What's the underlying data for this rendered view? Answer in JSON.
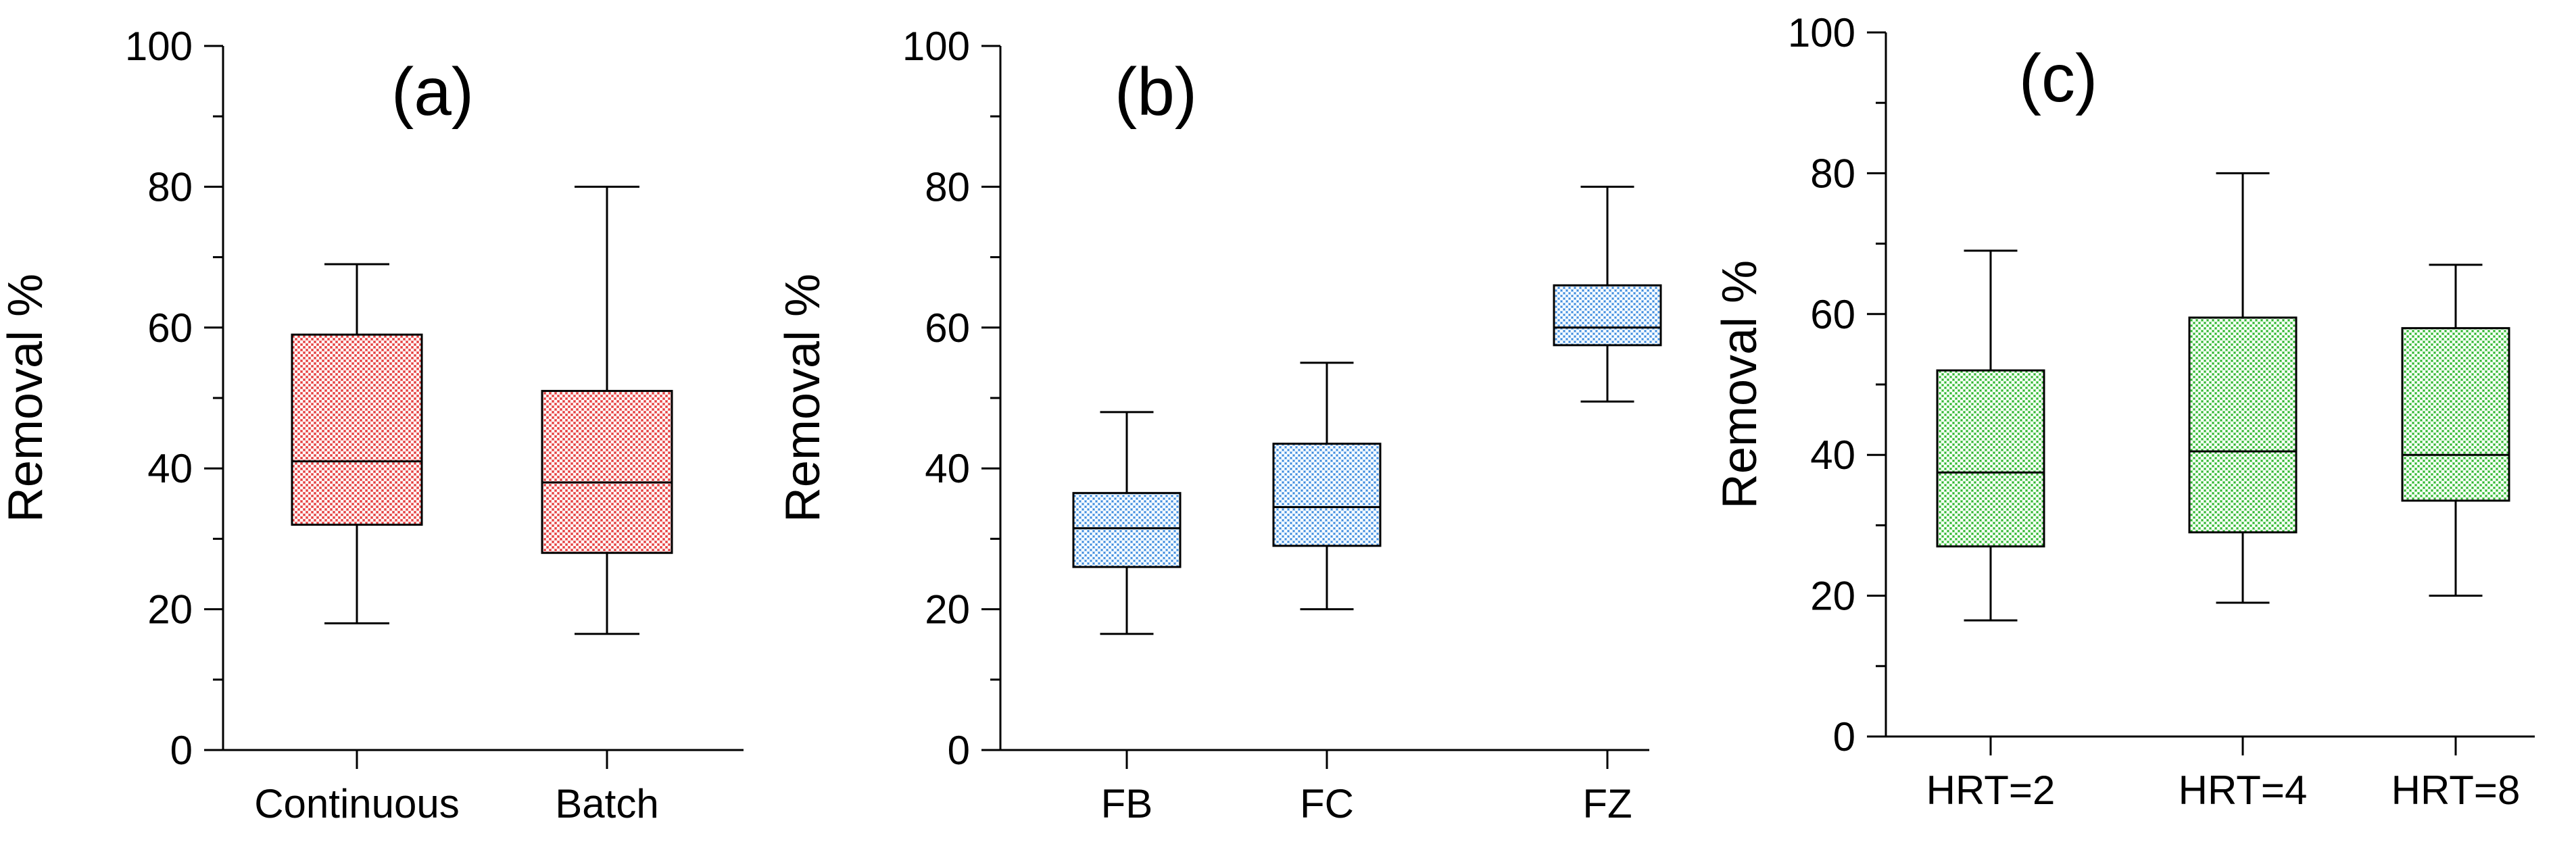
{
  "chart_data": [
    {
      "type": "box",
      "panel_label": "(a)",
      "ylabel": "Removal %",
      "xlabel": "",
      "ylim": [
        0,
        100
      ],
      "yticks": [
        "0",
        "20",
        "40",
        "60",
        "80",
        "100"
      ],
      "categories": [
        "Continuous",
        "Batch"
      ],
      "boxes": [
        {
          "min": 18,
          "q1": 32,
          "median": 41,
          "q3": 59,
          "max": 69
        },
        {
          "min": 16.5,
          "q1": 28,
          "median": 38,
          "q3": 51,
          "max": 80
        }
      ],
      "fill_color": "#f08080",
      "pattern_color": "#e23a3a"
    },
    {
      "type": "box",
      "panel_label": "(b)",
      "ylabel": "Removal %",
      "xlabel": "",
      "ylim": [
        0,
        100
      ],
      "yticks": [
        "0",
        "20",
        "40",
        "60",
        "80",
        "100"
      ],
      "categories": [
        "FB",
        "FC",
        "FZ"
      ],
      "boxes": [
        {
          "min": 16.5,
          "q1": 26,
          "median": 31.5,
          "q3": 36.5,
          "max": 48
        },
        {
          "min": 20,
          "q1": 29,
          "median": 34.5,
          "q3": 43.5,
          "max": 55
        },
        {
          "min": 49.5,
          "q1": 57.5,
          "median": 60,
          "q3": 66,
          "max": 80
        }
      ],
      "fill_color": "#9ecbf5",
      "pattern_color": "#3f86d8"
    },
    {
      "type": "box",
      "panel_label": "(c)",
      "ylabel": "Removal %",
      "xlabel": "",
      "ylim": [
        0,
        100
      ],
      "yticks": [
        "0",
        "20",
        "40",
        "60",
        "80",
        "100"
      ],
      "categories": [
        "HRT=2",
        "HRT=4",
        "HRT=8"
      ],
      "boxes": [
        {
          "min": 16.5,
          "q1": 27,
          "median": 37.5,
          "q3": 52,
          "max": 69
        },
        {
          "min": 19,
          "q1": 29,
          "median": 40.5,
          "q3": 59.5,
          "max": 80
        },
        {
          "min": 20,
          "q1": 33.5,
          "median": 40,
          "q3": 58,
          "max": 67
        }
      ],
      "fill_color": "#8fe08f",
      "pattern_color": "#2fae2f"
    }
  ]
}
